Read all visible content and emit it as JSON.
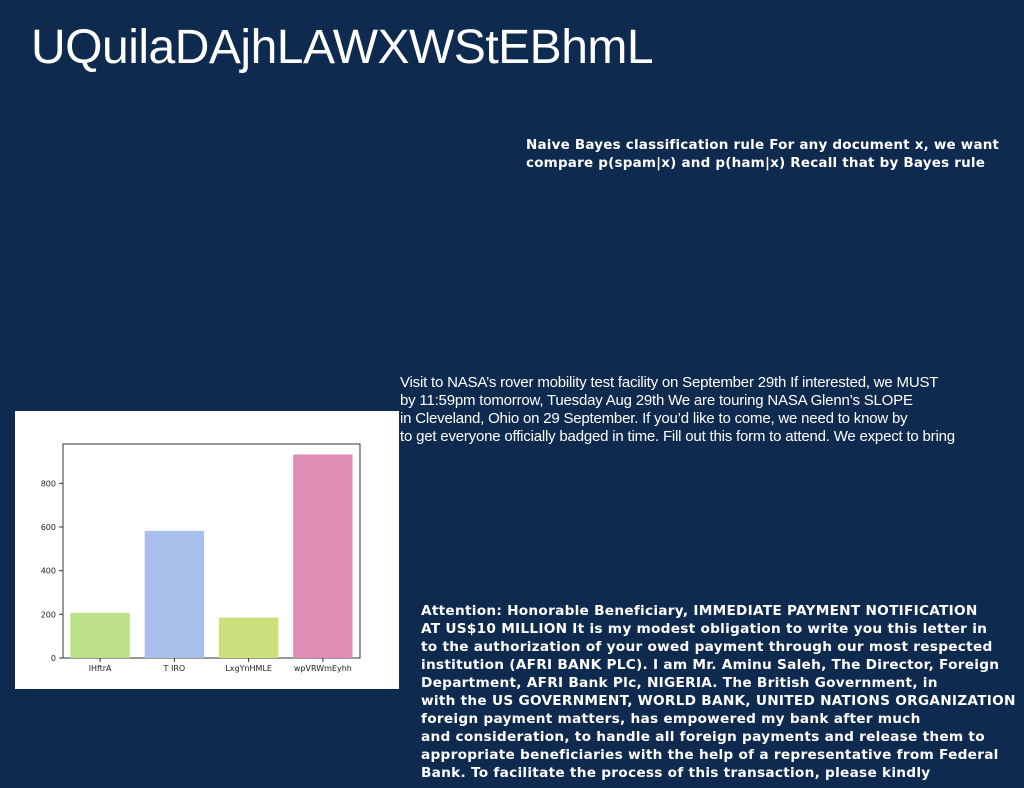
{
  "title": "UQuilaDAjhLAWXWStEBhmL",
  "naive_bayes": {
    "lines": [
      "Naive Bayes classification rule For any document x, we want",
      "compare p(spam|x) and p(ham|x) Recall that by Bayes rule"
    ]
  },
  "nasa": {
    "lines": [
      "Visit to NASA’s rover mobility test facility on September 29th If interested, we MUST",
      "by 11:59pm tomorrow, Tuesday Aug 29th We are touring NASA Glenn’s SLOPE",
      "in Cleveland, Ohio on 29 September. If you’d like to come, we need to know by",
      "to get everyone officially badged in time. Fill out this form to attend. We expect to bring"
    ]
  },
  "scam": {
    "lines": [
      "Attention: Honorable Beneficiary, IMMEDIATE PAYMENT NOTIFICATION",
      "AT US$10 MILLION It is my modest obligation to write you this letter in",
      "to the authorization of your owed payment through our most respected",
      "institution (AFRI BANK PLC). I am Mr. Aminu Saleh, The Director, Foreign",
      "Department, AFRI Bank Plc, NIGERIA. The British Government, in",
      "with the US GOVERNMENT, WORLD BANK, UNITED NATIONS ORGANIZATION",
      "foreign payment matters, has empowered my bank after much",
      "and consideration, to handle all foreign payments and release them to",
      "appropriate beneficiaries with the help of a representative from Federal",
      "Bank. To facilitate the process of this transaction, please kindly"
    ]
  },
  "chart_data": {
    "type": "bar",
    "categories": [
      "lHftrA",
      "T IRO",
      "LxgYnHMLE",
      "wpVRWmEyhh"
    ],
    "values": [
      207,
      582,
      185,
      932
    ],
    "colors": [
      "#bbe087",
      "#a9c0ec",
      "#c9e07c",
      "#e08db6"
    ],
    "ylim": [
      0,
      980
    ],
    "yticks": [
      0,
      200,
      400,
      600,
      800
    ],
    "title": "",
    "xlabel": "",
    "ylabel": "",
    "grid": false
  }
}
